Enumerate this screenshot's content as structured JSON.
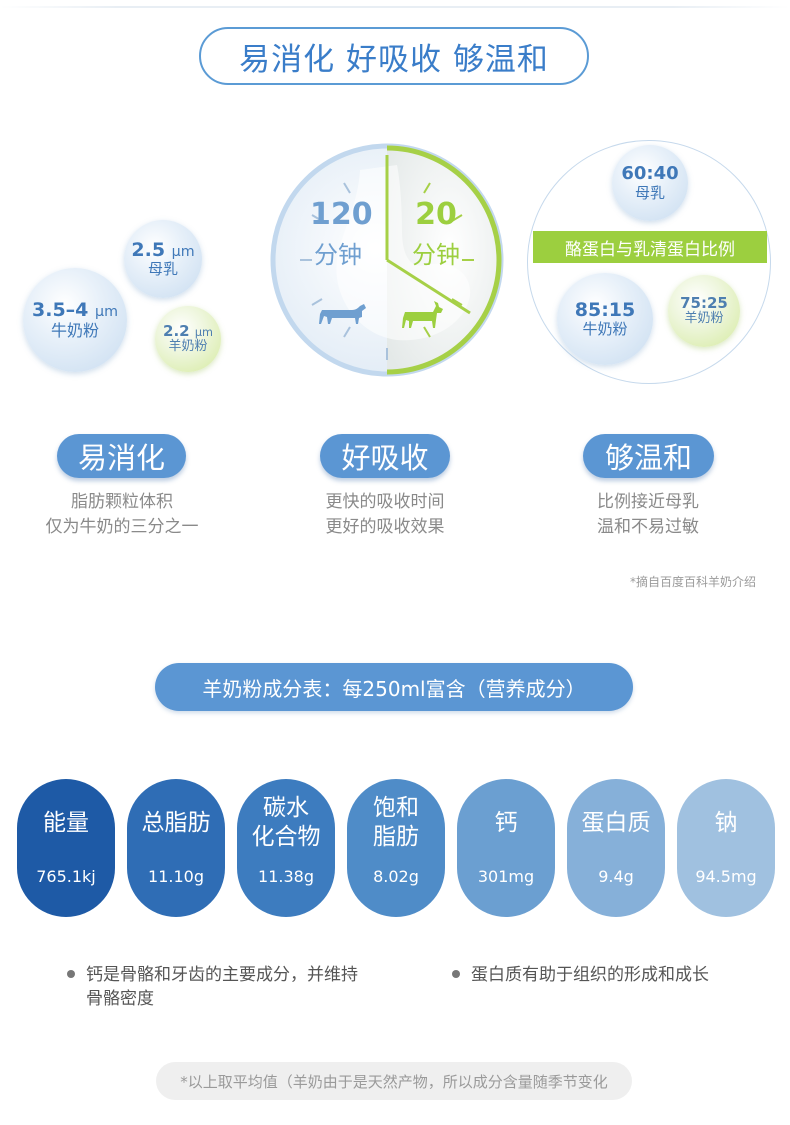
{
  "header": {
    "title": "易消化 好吸收 够温和"
  },
  "particles": {
    "mother": {
      "value": "2.5",
      "unit": "μm",
      "label": "母乳"
    },
    "cow": {
      "value": "3.5–4",
      "unit": "μm",
      "label": "牛奶粉"
    },
    "goat": {
      "value": "2.2",
      "unit": "μm",
      "label": "羊奶粉"
    }
  },
  "clock": {
    "cow_minutes": "120",
    "cow_unit": "分钟",
    "goat_minutes": "20",
    "goat_unit": "分钟"
  },
  "ratio": {
    "banner": "酪蛋白与乳清蛋白比例",
    "mother": {
      "value": "60:40",
      "label": "母乳"
    },
    "cow": {
      "value": "85:15",
      "label": "牛奶粉"
    },
    "goat": {
      "value": "75:25",
      "label": "羊奶粉"
    }
  },
  "features": [
    {
      "title": "易消化",
      "line1": "脂肪颗粒体积",
      "line2": "仅为牛奶的三分之一"
    },
    {
      "title": "好吸收",
      "line1": "更快的吸收时间",
      "line2": "更好的吸收效果"
    },
    {
      "title": "够温和",
      "line1": "比例接近母乳",
      "line2": "温和不易过敏"
    }
  ],
  "source_note": "*摘自百度百科羊奶介绍",
  "nutrition": {
    "banner": "羊奶粉成分表：每250ml富含（营养成分）",
    "items": [
      {
        "name_line1": "能量",
        "name_line2": "",
        "value": "765.1kj",
        "color": "#1e5aa6"
      },
      {
        "name_line1": "总脂肪",
        "name_line2": "",
        "value": "11.10g",
        "color": "#2f6db5"
      },
      {
        "name_line1": "碳水",
        "name_line2": "化合物",
        "value": "11.38g",
        "color": "#3d7cbf"
      },
      {
        "name_line1": "饱和",
        "name_line2": "脂肪",
        "value": "8.02g",
        "color": "#4f8cc8"
      },
      {
        "name_line1": "钙",
        "name_line2": "",
        "value": "301mg",
        "color": "#6b9fd1"
      },
      {
        "name_line1": "蛋白质",
        "name_line2": "",
        "value": "9.4g",
        "color": "#86b0d9"
      },
      {
        "name_line1": "钠",
        "name_line2": "",
        "value": "94.5mg",
        "color": "#a0c1e0"
      }
    ]
  },
  "bullets": {
    "left_line1": "钙是骨骼和牙齿的主要成分，并维持",
    "left_line2": "骨骼密度",
    "right": "蛋白质有助于组织的形成和成长"
  },
  "footer": "*以上取平均值（羊奶由于是天然产物，所以成分含量随季节变化"
}
